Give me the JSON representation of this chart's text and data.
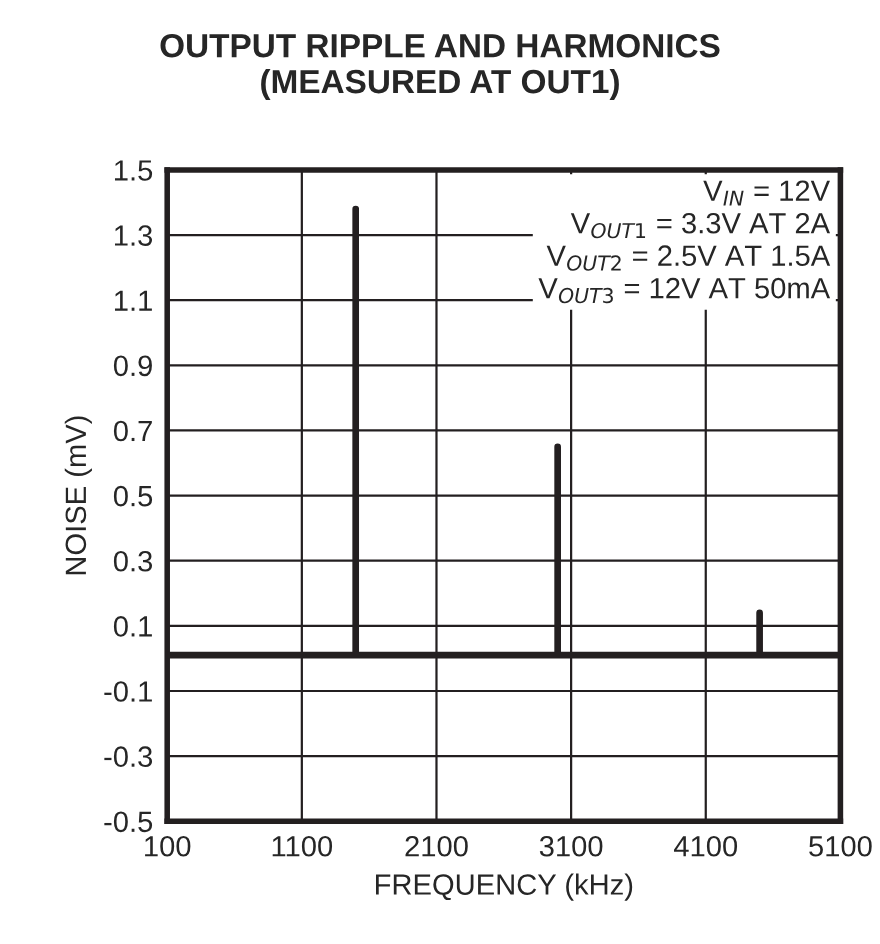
{
  "chart_data": {
    "type": "line",
    "title": "OUTPUT RIPPLE AND HARMONICS\n(MEASURED AT OUT1)",
    "xlabel": "FREQUENCY (kHz)",
    "ylabel": "NOISE (mV)",
    "x": [
      100,
      1500,
      1500,
      1500,
      3000,
      3000,
      3000,
      4500,
      4500,
      4500,
      5100
    ],
    "series": [
      {
        "color": "#231f20",
        "values": [
          0.01,
          0.01,
          1.38,
          0.01,
          0.01,
          0.65,
          0.01,
          0.01,
          0.14,
          0.01,
          0.01
        ]
      }
    ],
    "xlim": [
      100,
      5100
    ],
    "xticks": [
      100,
      1100,
      2100,
      3100,
      4100,
      5100
    ],
    "ylim": [
      -0.5,
      1.5
    ],
    "yticks": [
      -0.5,
      -0.3,
      -0.1,
      0.1,
      0.3,
      0.5,
      0.7,
      0.9,
      1.1,
      1.3,
      1.5
    ],
    "grid": true,
    "legend": false,
    "annotations": [
      "V$_{IN}$ = 12V\nV$_{OUT1}$ = 3.3V AT 2A\nV$_{OUT2}$ = 2.5V AT 1.5A\nV$_{OUT3}$ = 12V AT 50mA"
    ]
  }
}
